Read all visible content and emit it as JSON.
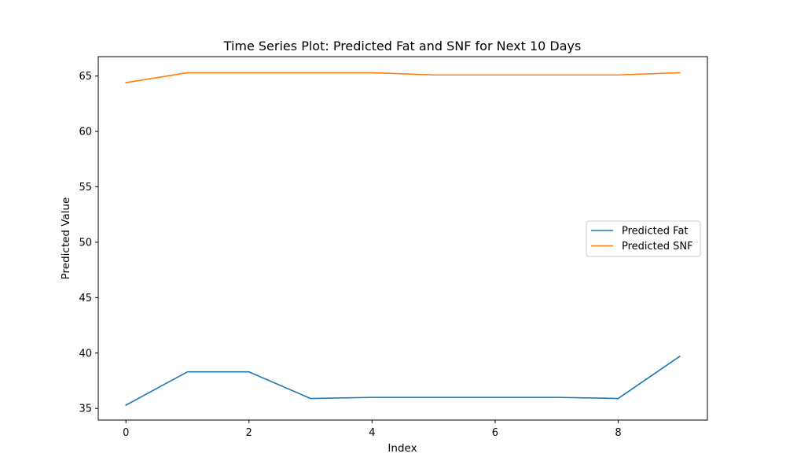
{
  "chart_data": {
    "type": "line",
    "title": "Time Series Plot: Predicted Fat and SNF for Next 10 Days",
    "xlabel": "Index",
    "ylabel": "Predicted Value",
    "x": [
      0,
      1,
      2,
      3,
      4,
      5,
      6,
      7,
      8,
      9
    ],
    "xlim": [
      -0.45,
      9.45
    ],
    "ylim": [
      33.95,
      66.75
    ],
    "xticks": [
      0,
      2,
      4,
      6,
      8
    ],
    "yticks": [
      35,
      40,
      45,
      50,
      55,
      60,
      65
    ],
    "grid": false,
    "legend_position": "center-right",
    "series": [
      {
        "name": "Predicted Fat",
        "color": "#1f77b4",
        "values": [
          35.3,
          38.3,
          38.3,
          35.9,
          36.0,
          36.0,
          36.0,
          36.0,
          35.9,
          39.7
        ]
      },
      {
        "name": "Predicted SNF",
        "color": "#ff7f0e",
        "values": [
          64.4,
          65.3,
          65.3,
          65.3,
          65.3,
          65.1,
          65.1,
          65.1,
          65.1,
          65.3
        ]
      }
    ]
  }
}
